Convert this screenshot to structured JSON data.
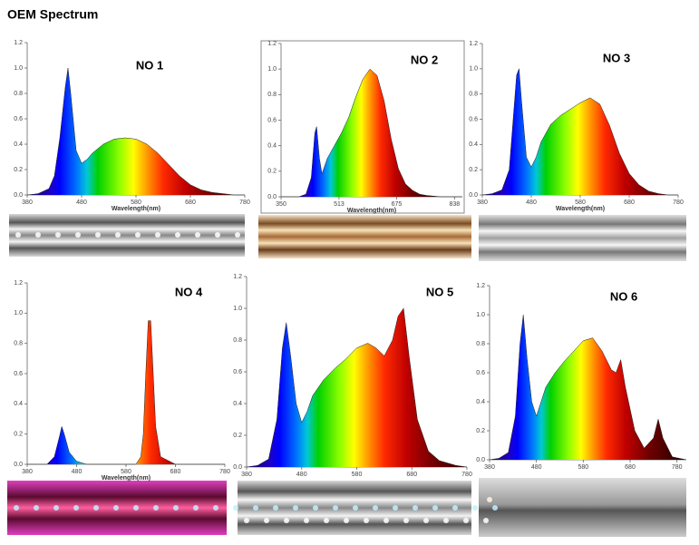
{
  "title": "OEM Spectrum",
  "chart_data": [
    {
      "type": "area",
      "title": "NO 1",
      "xlabel": "Wavelength(nm)",
      "xlim": [
        380,
        780
      ],
      "xticks": [
        380,
        480,
        580,
        680,
        780
      ],
      "ylim": [
        0,
        1.2
      ],
      "yticks": [
        {
          "value": 0,
          "label": "0.0"
        },
        0.2,
        0.4,
        0.6,
        0.8,
        {
          "value": 1,
          "label": "1.0"
        },
        1.2
      ],
      "x": [
        380,
        400,
        420,
        430,
        440,
        450,
        455,
        460,
        470,
        480,
        490,
        500,
        520,
        540,
        560,
        580,
        600,
        620,
        640,
        660,
        680,
        700,
        720,
        740,
        760,
        780
      ],
      "values": [
        0,
        0.01,
        0.05,
        0.15,
        0.45,
        0.85,
        1.0,
        0.8,
        0.35,
        0.25,
        0.28,
        0.33,
        0.4,
        0.44,
        0.45,
        0.44,
        0.4,
        0.33,
        0.24,
        0.15,
        0.08,
        0.04,
        0.02,
        0.01,
        0,
        0
      ]
    },
    {
      "type": "area",
      "title": "NO 2",
      "xlabel": "Wavelength(nm)",
      "xlim": [
        350,
        860
      ],
      "xticks": [
        350,
        513,
        675,
        838
      ],
      "ylim": [
        0,
        1.2
      ],
      "yticks": [
        {
          "value": 0,
          "label": "0.0"
        },
        0.2,
        0.4,
        0.6,
        0.8,
        {
          "value": 1,
          "label": "1.0"
        },
        1.2
      ],
      "x": [
        350,
        400,
        420,
        435,
        445,
        450,
        458,
        465,
        480,
        500,
        520,
        540,
        560,
        580,
        600,
        620,
        640,
        660,
        680,
        700,
        720,
        740,
        760,
        800,
        860
      ],
      "values": [
        0,
        0,
        0.02,
        0.15,
        0.5,
        0.55,
        0.3,
        0.18,
        0.3,
        0.4,
        0.5,
        0.62,
        0.78,
        0.92,
        1.0,
        0.95,
        0.75,
        0.45,
        0.22,
        0.1,
        0.05,
        0.02,
        0.01,
        0,
        0
      ]
    },
    {
      "type": "area",
      "title": "NO 3",
      "xlabel": "Wavelength(nm)",
      "xlim": [
        380,
        780
      ],
      "xticks": [
        380,
        480,
        580,
        680,
        780
      ],
      "ylim": [
        0,
        1.2
      ],
      "yticks": [
        {
          "value": 0,
          "label": "0.0"
        },
        0.2,
        0.4,
        0.6,
        0.8,
        {
          "value": 1,
          "label": "1.0"
        },
        1.2
      ],
      "x": [
        380,
        400,
        420,
        435,
        445,
        450,
        455,
        460,
        470,
        480,
        490,
        500,
        520,
        540,
        560,
        580,
        600,
        620,
        640,
        660,
        680,
        700,
        720,
        740,
        760,
        780
      ],
      "values": [
        0,
        0.01,
        0.04,
        0.2,
        0.7,
        0.95,
        1.0,
        0.75,
        0.3,
        0.22,
        0.3,
        0.42,
        0.56,
        0.63,
        0.68,
        0.73,
        0.77,
        0.72,
        0.55,
        0.33,
        0.17,
        0.08,
        0.03,
        0.01,
        0,
        0
      ]
    },
    {
      "type": "area",
      "title": "NO 4",
      "xlabel": "Wavelength(nm)",
      "xlim": [
        380,
        780
      ],
      "xticks": [
        380,
        480,
        580,
        680,
        780
      ],
      "ylim": [
        0,
        1.2
      ],
      "yticks": [
        {
          "value": 0,
          "label": "0.0"
        },
        0.2,
        0.4,
        0.6,
        0.8,
        {
          "value": 1,
          "label": "1.0"
        },
        1.2
      ],
      "x": [
        380,
        420,
        435,
        445,
        450,
        455,
        465,
        480,
        500,
        560,
        600,
        610,
        615,
        620,
        625,
        630,
        635,
        640,
        650,
        680,
        780
      ],
      "values": [
        0,
        0,
        0.05,
        0.18,
        0.25,
        0.2,
        0.08,
        0.02,
        0,
        0,
        0,
        0.05,
        0.2,
        0.6,
        0.95,
        0.95,
        0.6,
        0.25,
        0.05,
        0,
        0
      ]
    },
    {
      "type": "area",
      "title": "NO 5",
      "xlim": [
        380,
        780
      ],
      "xticks": [
        380,
        480,
        580,
        680,
        780
      ],
      "ylim": [
        0,
        1.2
      ],
      "yticks": [
        {
          "value": 0,
          "label": "0.0"
        },
        0.2,
        0.4,
        0.6,
        0.8,
        {
          "value": 1,
          "label": "1.0"
        },
        1.2
      ],
      "x": [
        380,
        400,
        420,
        435,
        445,
        452,
        460,
        470,
        480,
        490,
        500,
        520,
        540,
        560,
        580,
        600,
        615,
        630,
        645,
        655,
        665,
        675,
        690,
        710,
        730,
        760,
        780
      ],
      "values": [
        0,
        0.01,
        0.05,
        0.3,
        0.75,
        0.91,
        0.7,
        0.4,
        0.28,
        0.35,
        0.45,
        0.55,
        0.62,
        0.68,
        0.75,
        0.78,
        0.75,
        0.7,
        0.8,
        0.95,
        1.0,
        0.7,
        0.3,
        0.1,
        0.04,
        0.01,
        0
      ]
    },
    {
      "type": "area",
      "title": "NO 6",
      "xlim": [
        380,
        800
      ],
      "xticks": [
        380,
        480,
        580,
        680,
        780
      ],
      "ylim": [
        0,
        1.2
      ],
      "yticks": [
        {
          "value": 0,
          "label": "0.0"
        },
        0.2,
        0.4,
        0.6,
        0.8,
        {
          "value": 1,
          "label": "1.0"
        },
        1.2
      ],
      "x": [
        380,
        400,
        420,
        435,
        445,
        452,
        460,
        470,
        480,
        500,
        520,
        540,
        560,
        580,
        600,
        620,
        640,
        650,
        660,
        670,
        690,
        710,
        730,
        740,
        750,
        770,
        800
      ],
      "values": [
        0,
        0.01,
        0.05,
        0.3,
        0.8,
        1.0,
        0.7,
        0.4,
        0.3,
        0.5,
        0.6,
        0.68,
        0.75,
        0.82,
        0.84,
        0.75,
        0.62,
        0.6,
        0.69,
        0.5,
        0.2,
        0.08,
        0.15,
        0.28,
        0.15,
        0.02,
        0
      ]
    }
  ]
}
